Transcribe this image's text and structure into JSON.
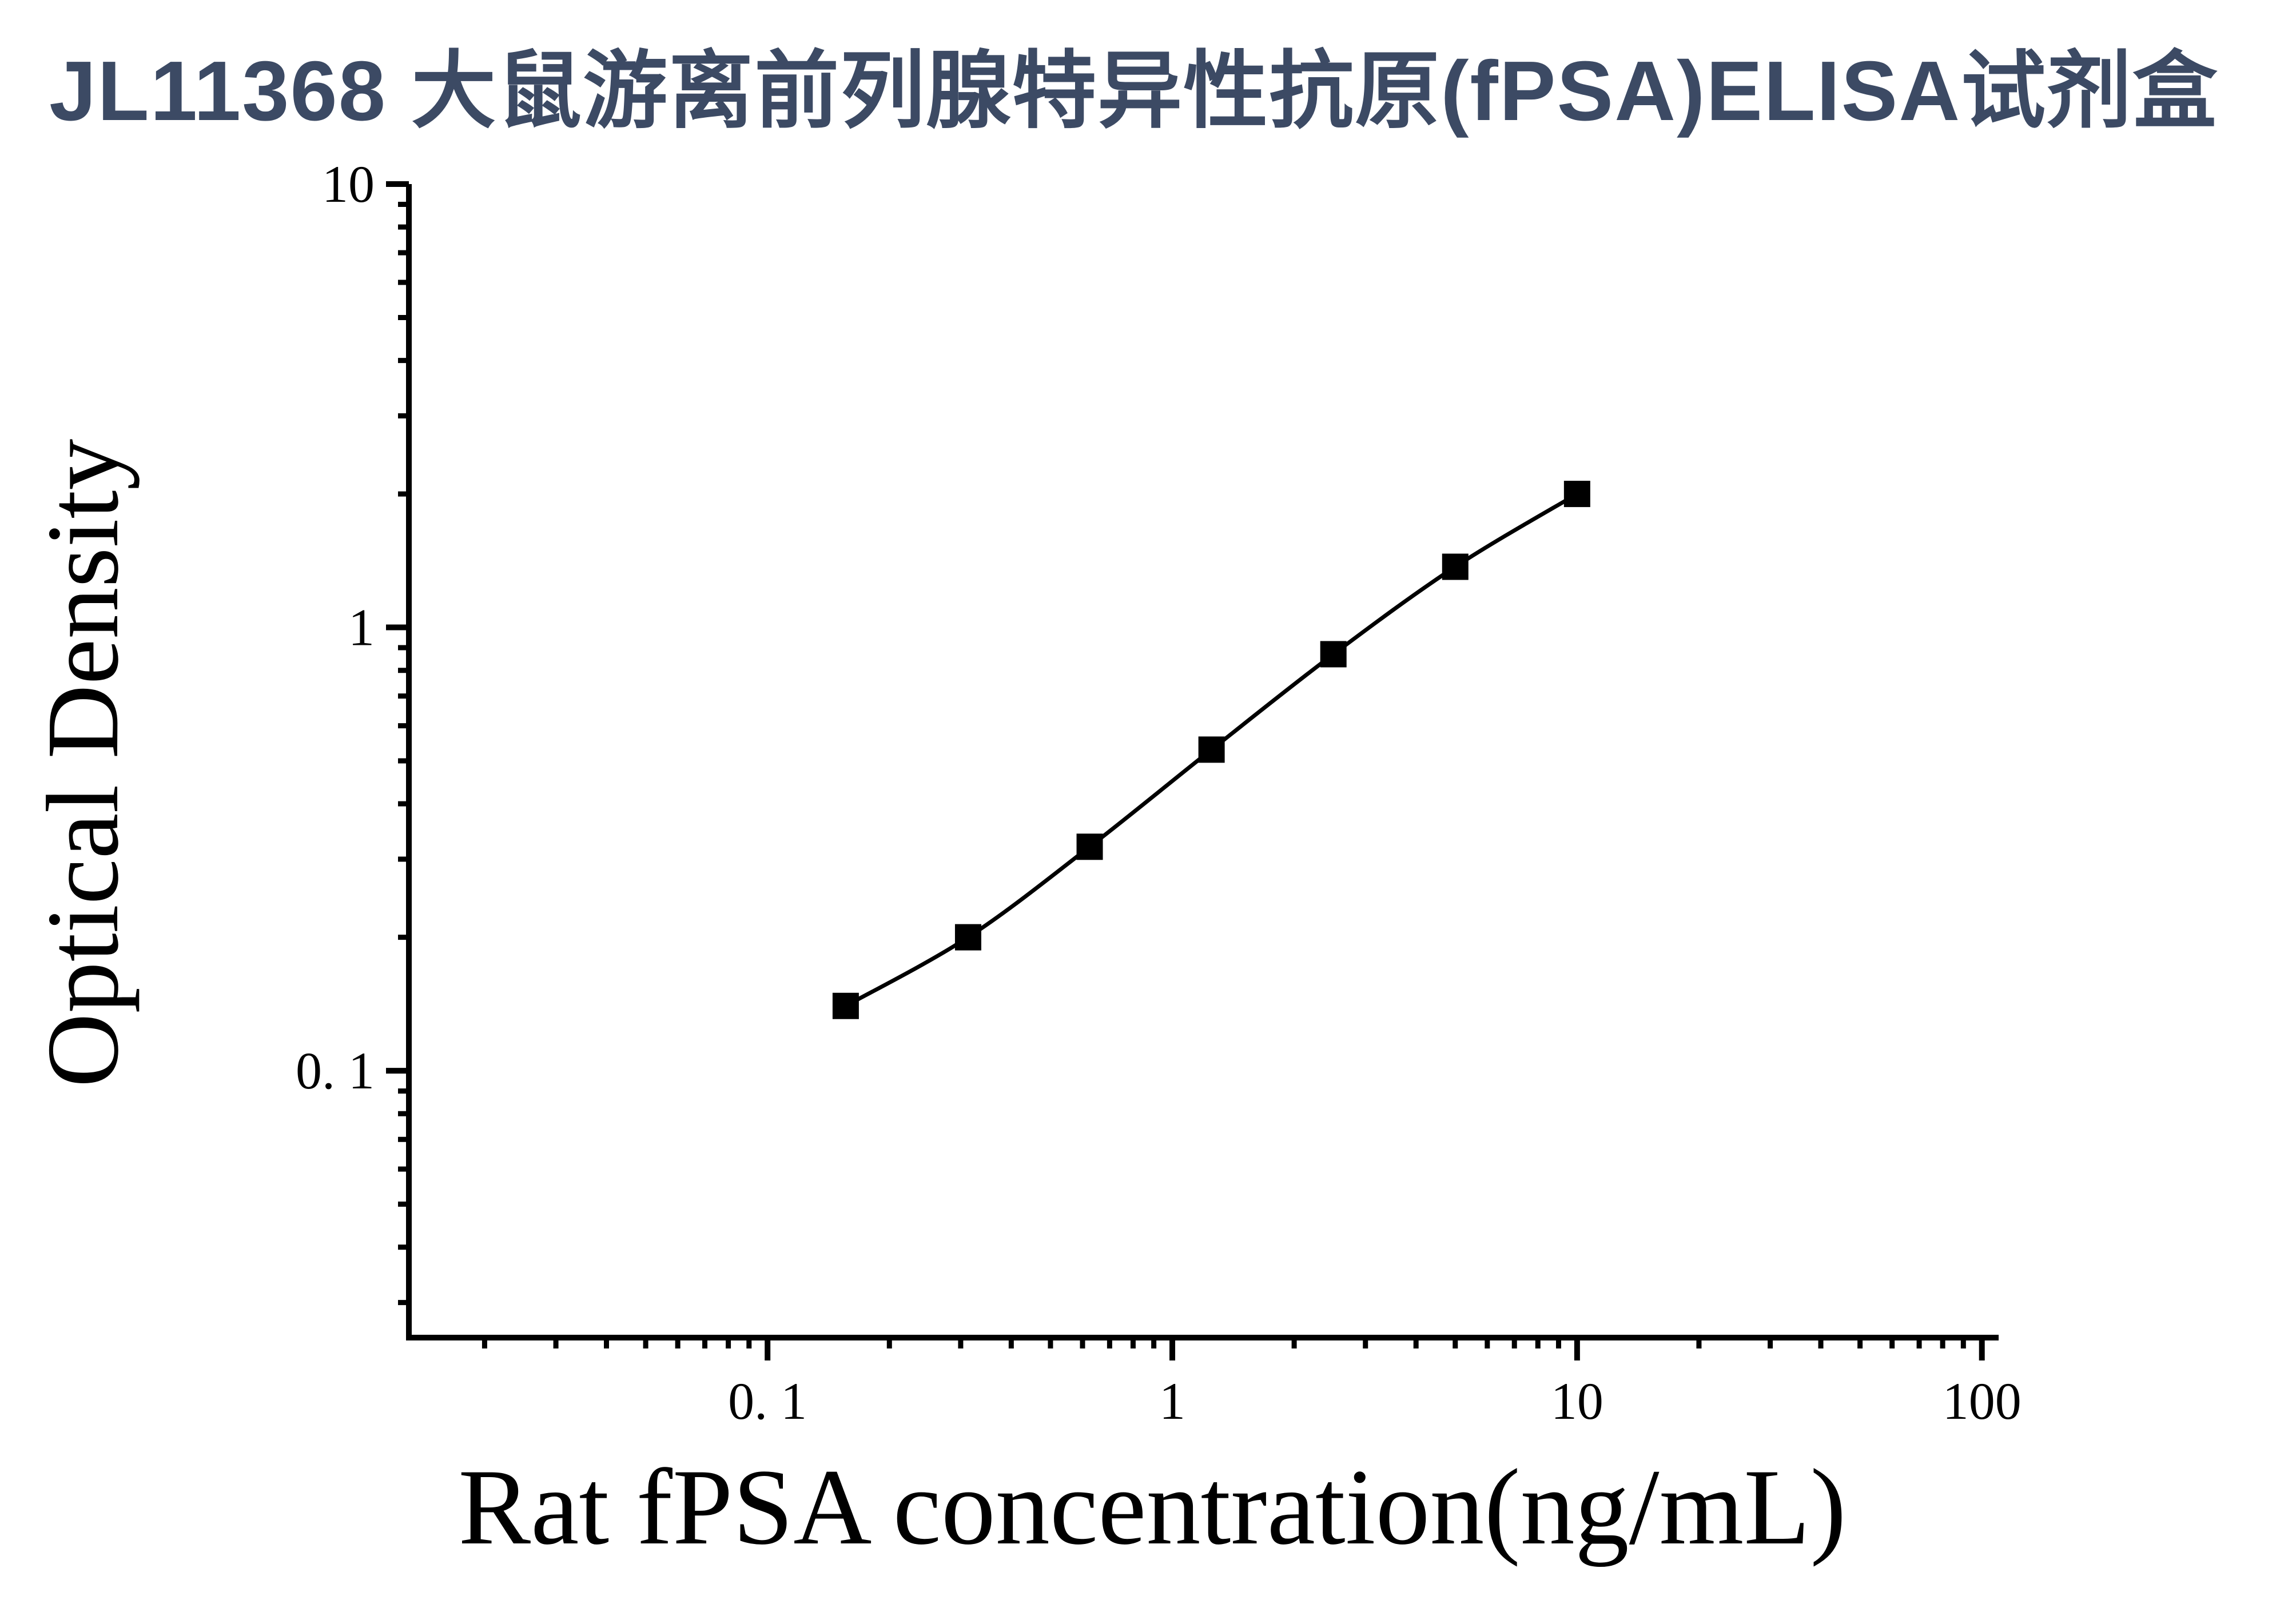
{
  "title": {
    "text": "JL11368 大鼠游离前列腺特异性抗原(fPSA)ELISA试剂盒",
    "color": "#3C4A64"
  },
  "chart_data": {
    "type": "line",
    "title": "",
    "xlabel": "Rat fPSA concentration(ng/mL)",
    "ylabel": "Optical Density",
    "x_scale": "log",
    "y_scale": "log",
    "xlim": [
      0.013,
      110
    ],
    "ylim": [
      0.025,
      10
    ],
    "x": [
      0.156,
      0.313,
      0.625,
      1.25,
      2.5,
      5,
      10
    ],
    "y": [
      0.14,
      0.2,
      0.32,
      0.53,
      0.87,
      1.37,
      2.0
    ],
    "x_major_ticks": [
      0.1,
      1,
      10,
      100
    ],
    "x_major_tick_labels": [
      "0. 1",
      "1",
      "10",
      "100"
    ],
    "y_major_ticks": [
      0.1,
      1,
      10
    ],
    "y_major_tick_labels": [
      "0. 1",
      "1",
      "10"
    ],
    "grid": false,
    "legend": null,
    "marker": "square",
    "marker_color": "#000000",
    "line_color": "#000000",
    "axis_color": "#000000"
  }
}
